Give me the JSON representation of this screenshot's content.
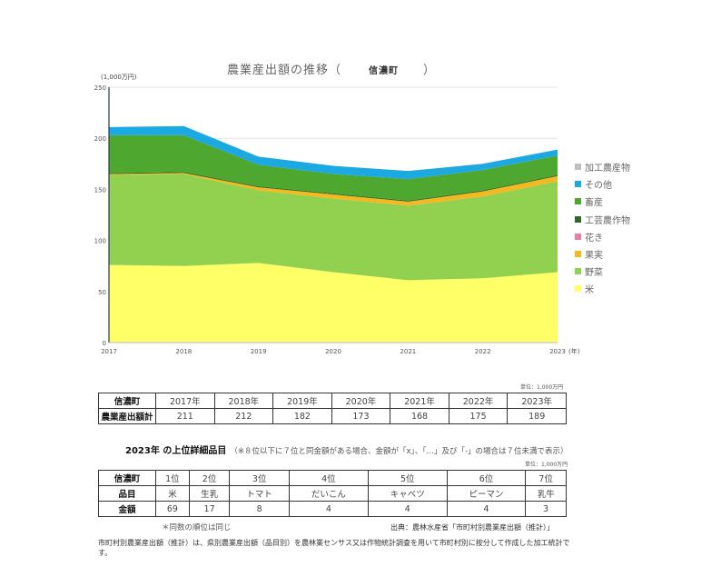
{
  "chart": {
    "title": "農業産出額の推移（",
    "town": "信濃町",
    "title_close": "）",
    "y_unit": "(1,000万円)",
    "x_unit": "(年)"
  },
  "chart_data": {
    "type": "area",
    "stacked": true,
    "title": "農業産出額の推移（ 信濃町 ）",
    "xlabel": "(年)",
    "ylabel": "(1,000万円)",
    "ylim": [
      0,
      250
    ],
    "yticks": [
      0,
      50,
      100,
      150,
      200,
      250
    ],
    "categories": [
      "2017",
      "2018",
      "2019",
      "2020",
      "2021",
      "2022",
      "2023"
    ],
    "legend_position": "right",
    "grid": "horizontal",
    "series": [
      {
        "name": "米",
        "color": "#FFFF66",
        "values": [
          76,
          75,
          78,
          69,
          61,
          63,
          69
        ]
      },
      {
        "name": "野菜",
        "color": "#92D050",
        "values": [
          88,
          90,
          71,
          72,
          73,
          80,
          89
        ]
      },
      {
        "name": "果実",
        "color": "#F4B820",
        "values": [
          1,
          1,
          3,
          4,
          4,
          5,
          5
        ]
      },
      {
        "name": "花き",
        "color": "#E87DA8",
        "values": [
          0,
          0,
          0,
          0,
          0,
          0,
          0
        ]
      },
      {
        "name": "工芸農作物",
        "color": "#2E6B1F",
        "values": [
          1,
          1,
          1,
          1,
          1,
          1,
          1
        ]
      },
      {
        "name": "畜産",
        "color": "#4EA72E",
        "values": [
          37,
          36,
          21,
          19,
          21,
          20,
          19
        ]
      },
      {
        "name": "その他",
        "color": "#1CA8E0",
        "values": [
          8,
          9,
          8,
          8,
          8,
          6,
          6
        ]
      },
      {
        "name": "加工農産物",
        "color": "#BFBFBF",
        "values": [
          0,
          0,
          0,
          0,
          0,
          0,
          0
        ]
      }
    ]
  },
  "legend": [
    {
      "label": "加工農産物",
      "color": "#BFBFBF"
    },
    {
      "label": "その他",
      "color": "#1CA8E0"
    },
    {
      "label": "畜産",
      "color": "#4EA72E"
    },
    {
      "label": "工芸農作物",
      "color": "#2E6B1F"
    },
    {
      "label": "花き",
      "color": "#E87DA8"
    },
    {
      "label": "果実",
      "color": "#F4B820"
    },
    {
      "label": "野菜",
      "color": "#92D050"
    },
    {
      "label": "米",
      "color": "#FFFF66"
    }
  ],
  "totals_table": {
    "unit": "単位：1,000万円",
    "header_label": "信濃町",
    "row_label": "農業産出額計",
    "years": [
      "2017年",
      "2018年",
      "2019年",
      "2020年",
      "2021年",
      "2022年",
      "2023年"
    ],
    "values": [
      "211",
      "212",
      "182",
      "173",
      "168",
      "175",
      "189"
    ]
  },
  "ranking": {
    "title": "2023年 の上位詳細品目",
    "note": "（※８位以下に７位と同金額がある場合、金額が「x」、「…」及び「-」の場合は７位未満で表示）",
    "unit": "単位：1,000万円",
    "header_label": "信濃町",
    "item_label": "品目",
    "amount_label": "金額",
    "ranks": [
      "1位",
      "2位",
      "3位",
      "4位",
      "5位",
      "6位",
      "7位"
    ],
    "items": [
      "米",
      "生乳",
      "トマト",
      "だいこん",
      "キャベツ",
      "ピーマン",
      "乳牛"
    ],
    "amounts": [
      "69",
      "17",
      "8",
      "4",
      "4",
      "4",
      "3"
    ],
    "same_rank_note": "＊同数の順位は同じ",
    "source": "出典：農林水産省「市町村別農業産出額（推計）」"
  },
  "footnote": "市町村別農業産出額（推計）は、県別農業産出額（品目別）を農林業センサス又は作物統計調査を用いて市町村別に按分して作成した加工統計です。"
}
